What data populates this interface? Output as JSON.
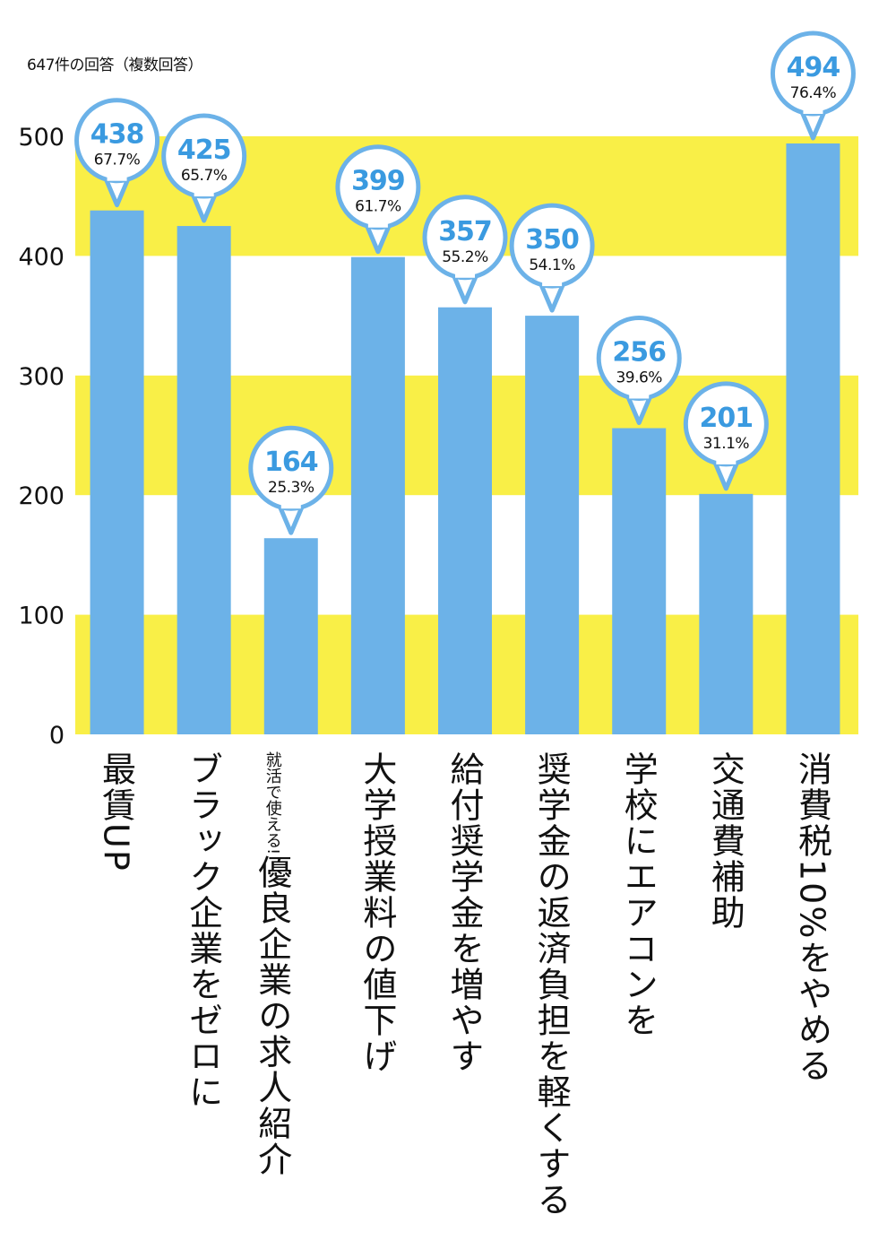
{
  "chart_data": {
    "type": "bar",
    "title": "",
    "note": "647件の回答（複数回答）",
    "categories": [
      "最賃UP",
      "ブラック企業をゼロに",
      "優良企業の求人紹介",
      "大学授業料の値下げ",
      "給付奨学金を増やす",
      "奨学金の返済負担を軽くする",
      "学校にエアコンを",
      "交通費補助",
      "消費税10%をやめる"
    ],
    "category_sublabels": [
      "",
      "",
      "就活で使える!",
      "",
      "",
      "",
      "",
      "",
      ""
    ],
    "values": [
      438,
      425,
      164,
      399,
      357,
      350,
      256,
      201,
      494
    ],
    "percent_labels": [
      "67.7%",
      "65.7%",
      "25.3%",
      "61.7%",
      "55.2%",
      "54.1%",
      "39.6%",
      "31.1%",
      "76.4%"
    ],
    "ylim": [
      0,
      500
    ],
    "yticks": [
      0,
      100,
      200,
      300,
      400,
      500
    ],
    "xlabel": "",
    "ylabel": "",
    "colors": {
      "bar": "#6cb2e8",
      "band": "#f9ef47",
      "value_text": "#3a9ae0",
      "bubble_stroke": "#6cb2e8"
    }
  }
}
